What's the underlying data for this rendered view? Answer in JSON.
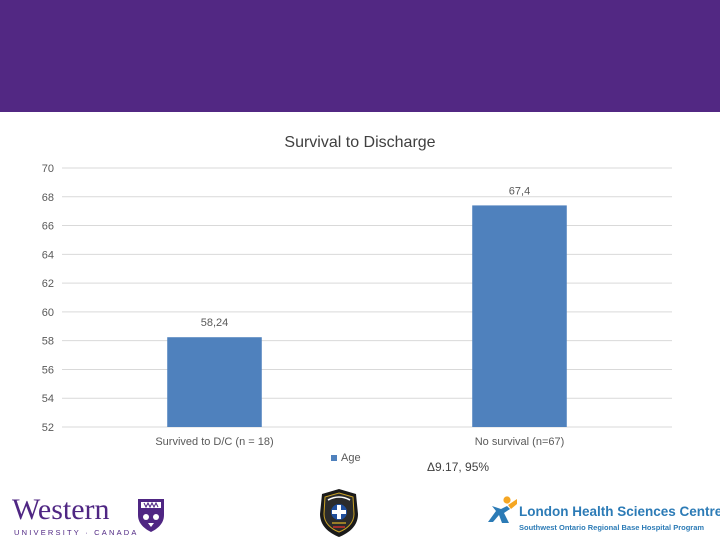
{
  "theme": {
    "band_color": "#522883",
    "bar_color": "#4f81bd",
    "grid_color": "#d9d9d9",
    "lhsc_blue": "#2c7bb6",
    "lhsc_orange": "#f5a623"
  },
  "chart_data": {
    "type": "bar",
    "title": "Survival to Discharge",
    "categories": [
      "Survived to D/C (n = 18)",
      "No survival (n=67)"
    ],
    "series": [
      {
        "name": "Age",
        "values": [
          58.24,
          67.4
        ]
      }
    ],
    "data_labels": [
      "58,24",
      "67,4"
    ],
    "ylim": [
      52,
      70
    ],
    "yticks": [
      52,
      54,
      56,
      58,
      60,
      62,
      64,
      66,
      68,
      70
    ],
    "xlabel": "",
    "ylabel": "",
    "grid": true,
    "legend": "bottom"
  },
  "annotation": "Δ9.17, 95%",
  "logos": {
    "western": {
      "name": "Western",
      "subtitle": "UNIVERSITY · CANADA",
      "icon": "western-crest-icon"
    },
    "ems": {
      "icon": "ems-badge-icon"
    },
    "lhsc": {
      "name": "London Health Sciences Centre",
      "subtitle": "Southwest Ontario Regional Base Hospital Program",
      "icon": "lhsc-figure-icon"
    }
  }
}
